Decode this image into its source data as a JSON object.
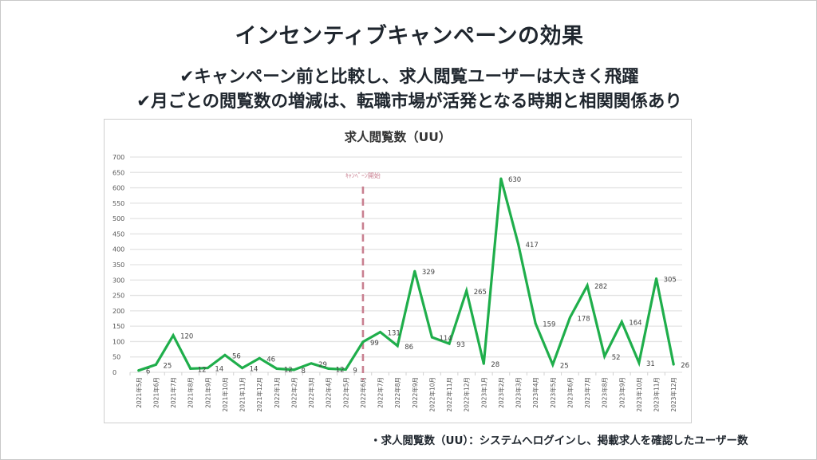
{
  "slide": {
    "title": "インセンティブキャンペーンの効果",
    "bullets": [
      "✔キャンペーン前と比較し、求人閲覧ユーザーは大きく飛躍",
      "✔月ごとの閲覧数の増減は、転職市場が活発となる時期と相関関係あり"
    ],
    "footnote": "・求人閲覧数（UU）：システムへログインし、掲載求人を確認したユーザー数"
  },
  "colors": {
    "line": "#1fae4b",
    "campaign_marker": "#c97f90",
    "grid": "#e3e3e3",
    "text": "#1f262e"
  },
  "chart_data": {
    "type": "line",
    "title": "求人閲覧数（UU）",
    "xlabel": "",
    "ylabel": "",
    "ylim": [
      0,
      700
    ],
    "yticks": [
      0,
      50,
      100,
      150,
      200,
      250,
      300,
      350,
      400,
      450,
      500,
      550,
      600,
      650,
      700
    ],
    "grid": true,
    "legend": "none",
    "categories": [
      "2021年5月",
      "2021年6月",
      "2021年7月",
      "2021年8月",
      "2021年9月",
      "2021年10月",
      "2021年11月",
      "2021年12月",
      "2022年1月",
      "2022年2月",
      "2022年3月",
      "2022年4月",
      "2022年5月",
      "2022年6月",
      "2022年7月",
      "2022年8月",
      "2022年9月",
      "2022年10月",
      "2022年11月",
      "2022年12月",
      "2023年1月",
      "2023年2月",
      "2023年3月",
      "2023年4月",
      "2023年5月",
      "2023年6月",
      "2023年7月",
      "2023年8月",
      "2023年9月",
      "2023年10月",
      "2023年11月",
      "2023年12月"
    ],
    "series": [
      {
        "name": "求人閲覧数（UU）",
        "values": [
          6,
          25,
          120,
          12,
          14,
          56,
          14,
          46,
          12,
          8,
          29,
          12,
          9,
          99,
          131,
          86,
          329,
          114,
          93,
          265,
          28,
          630,
          417,
          159,
          25,
          178,
          282,
          52,
          164,
          31,
          305,
          26
        ]
      }
    ],
    "annotations": [
      {
        "text": "ｷｬﾝﾍﾟｰﾝ開始",
        "at_category": "2022年6月",
        "style": "dashed-vertical-line"
      }
    ]
  }
}
